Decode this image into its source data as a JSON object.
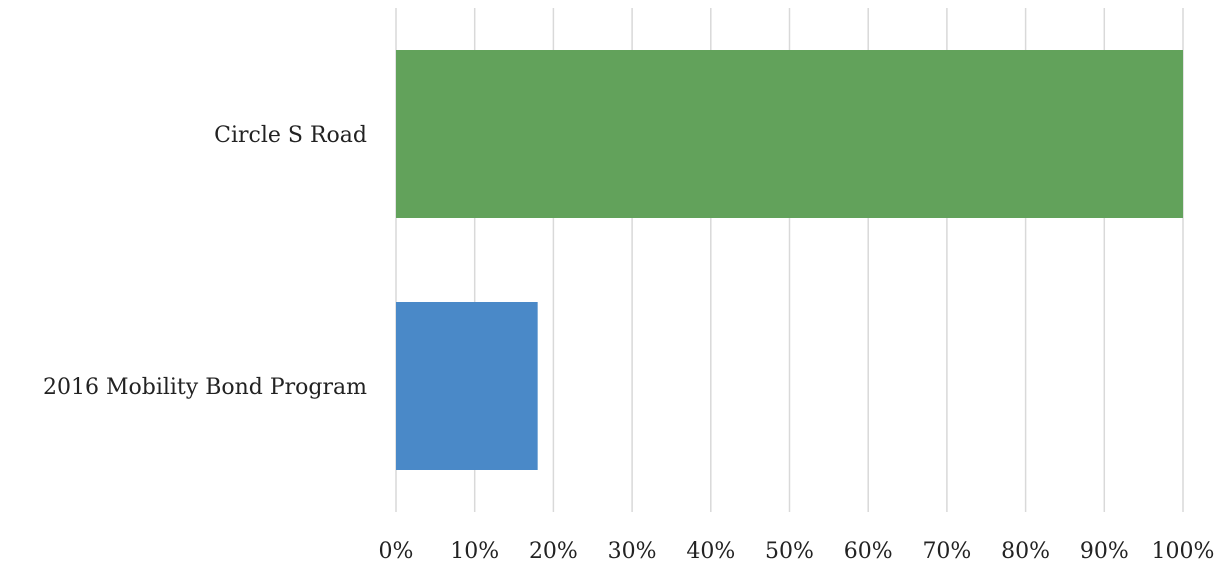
{
  "chart_data": {
    "type": "bar",
    "orientation": "horizontal",
    "title": "",
    "xlabel": "",
    "ylabel": "",
    "categories": [
      "Circle S Road",
      "2016 Mobility Bond Program"
    ],
    "values": [
      100,
      18
    ],
    "colors": [
      "#62a25b",
      "#4a89c8"
    ],
    "xlim": [
      0,
      100
    ],
    "x_ticks": [
      0,
      10,
      20,
      30,
      40,
      50,
      60,
      70,
      80,
      90,
      100
    ],
    "x_tick_labels": [
      "0%",
      "10%",
      "20%",
      "30%",
      "40%",
      "50%",
      "60%",
      "70%",
      "80%",
      "90%",
      "100%"
    ],
    "grid": true,
    "legend": "none"
  }
}
